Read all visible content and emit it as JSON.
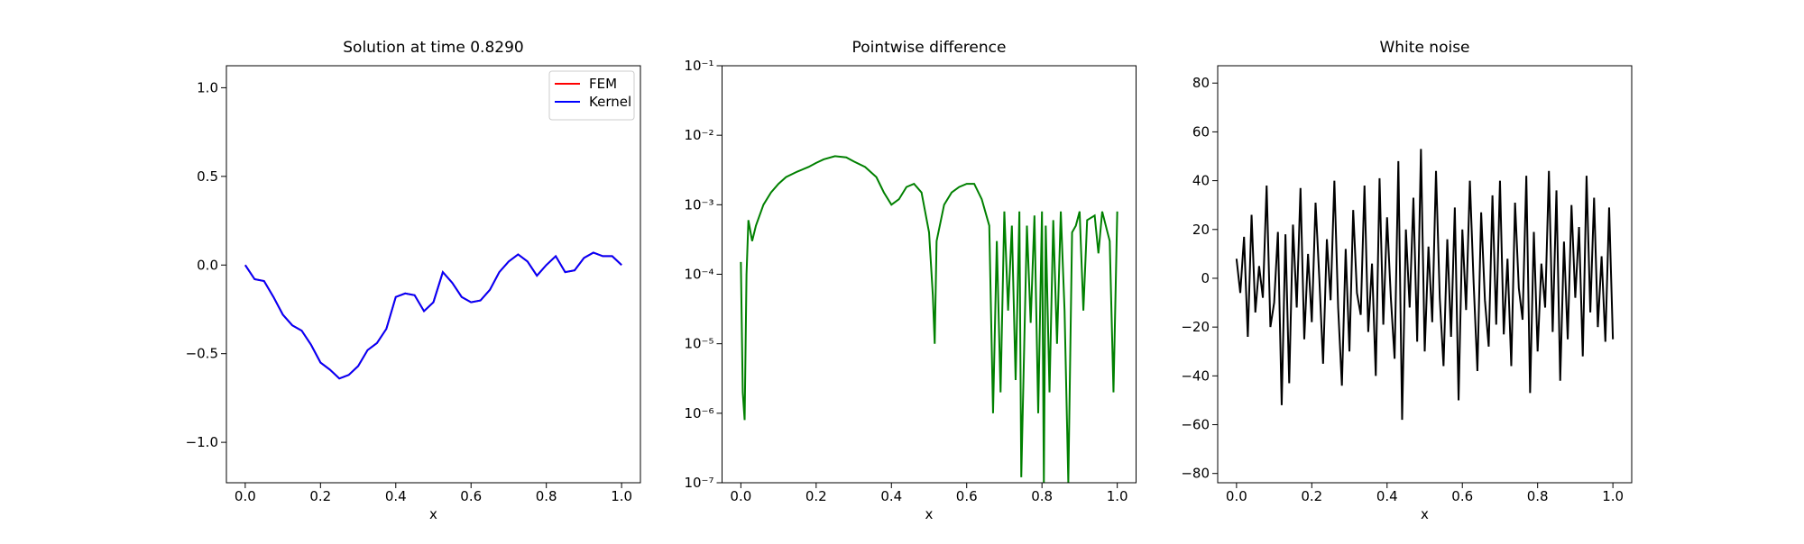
{
  "chart_data": [
    {
      "type": "line",
      "title": "Solution at time 0.8290",
      "x_label": "x",
      "x": [
        0,
        0.025,
        0.05,
        0.075,
        0.1,
        0.125,
        0.15,
        0.175,
        0.2,
        0.225,
        0.25,
        0.275,
        0.3,
        0.325,
        0.35,
        0.375,
        0.4,
        0.425,
        0.45,
        0.475,
        0.5,
        0.525,
        0.55,
        0.575,
        0.6,
        0.625,
        0.65,
        0.675,
        0.7,
        0.725,
        0.75,
        0.775,
        0.8,
        0.825,
        0.85,
        0.875,
        0.9,
        0.925,
        0.95,
        0.975,
        1.0
      ],
      "series": [
        {
          "name": "FEM",
          "color": "#ff0000",
          "values": [
            0.0,
            -0.08,
            -0.09,
            -0.18,
            -0.28,
            -0.34,
            -0.37,
            -0.45,
            -0.55,
            -0.59,
            -0.64,
            -0.62,
            -0.57,
            -0.48,
            -0.44,
            -0.36,
            -0.18,
            -0.16,
            -0.17,
            -0.26,
            -0.21,
            -0.04,
            -0.1,
            -0.18,
            -0.21,
            -0.2,
            -0.14,
            -0.04,
            0.02,
            0.06,
            0.02,
            -0.06,
            0.0,
            0.05,
            -0.04,
            -0.03,
            0.04,
            0.07,
            0.05,
            0.05,
            0.0
          ]
        },
        {
          "name": "Kernel",
          "color": "#0000ff",
          "values": [
            0.0,
            -0.08,
            -0.09,
            -0.18,
            -0.28,
            -0.34,
            -0.37,
            -0.45,
            -0.55,
            -0.59,
            -0.64,
            -0.62,
            -0.57,
            -0.48,
            -0.44,
            -0.36,
            -0.18,
            -0.16,
            -0.17,
            -0.26,
            -0.21,
            -0.04,
            -0.1,
            -0.18,
            -0.21,
            -0.2,
            -0.14,
            -0.04,
            0.02,
            0.06,
            0.02,
            -0.06,
            0.0,
            0.05,
            -0.04,
            -0.03,
            0.04,
            0.07,
            0.05,
            0.05,
            0.0
          ]
        }
      ],
      "xlim": [
        -0.05,
        1.05
      ],
      "xticks": [
        {
          "value": 0,
          "label": "0.0"
        },
        0.2,
        0.4,
        0.6,
        0.8,
        {
          "value": 1,
          "label": "1.0"
        }
      ],
      "ylim": [
        -1.228,
        1.124
      ],
      "yticks": [
        {
          "value": -1,
          "label": "−1.0"
        },
        {
          "value": -0.5,
          "label": "−0.5"
        },
        {
          "value": 0,
          "label": "0.0"
        },
        0.5,
        {
          "value": 1,
          "label": "1.0"
        }
      ],
      "legend": "upper right"
    },
    {
      "type": "line",
      "title": "Pointwise difference",
      "x_label": "x",
      "yscale": "log",
      "x": [
        0,
        0.005,
        0.01,
        0.015,
        0.02,
        0.03,
        0.04,
        0.06,
        0.08,
        0.1,
        0.12,
        0.15,
        0.18,
        0.2,
        0.22,
        0.25,
        0.28,
        0.3,
        0.33,
        0.36,
        0.38,
        0.4,
        0.42,
        0.44,
        0.46,
        0.48,
        0.5,
        0.51,
        0.515,
        0.52,
        0.54,
        0.56,
        0.58,
        0.6,
        0.62,
        0.64,
        0.66,
        0.67,
        0.68,
        0.69,
        0.7,
        0.71,
        0.72,
        0.73,
        0.74,
        0.745,
        0.76,
        0.77,
        0.78,
        0.79,
        0.8,
        0.805,
        0.81,
        0.82,
        0.83,
        0.84,
        0.85,
        0.86,
        0.87,
        0.88,
        0.89,
        0.9,
        0.91,
        0.92,
        0.94,
        0.95,
        0.96,
        0.98,
        0.99,
        1.0
      ],
      "series": [
        {
          "name": "difference",
          "color": "#008000",
          "values": [
            0.00015,
            2e-06,
            8e-07,
            0.0001,
            0.0006,
            0.0003,
            0.0005,
            0.001,
            0.0015,
            0.002,
            0.0025,
            0.003,
            0.0035,
            0.004,
            0.0045,
            0.005,
            0.0048,
            0.0042,
            0.0035,
            0.0025,
            0.0015,
            0.001,
            0.0012,
            0.0018,
            0.002,
            0.0015,
            0.0004,
            5e-05,
            1e-05,
            0.0003,
            0.001,
            0.0015,
            0.0018,
            0.002,
            0.002,
            0.0012,
            0.0005,
            1e-06,
            0.0003,
            2e-06,
            0.0008,
            3e-05,
            0.0005,
            3e-06,
            0.0008,
            1.2e-07,
            0.0005,
            2e-05,
            0.0007,
            1e-06,
            0.0008,
            1e-07,
            0.0005,
            2e-06,
            0.0006,
            1e-05,
            0.0008,
            3e-05,
            1e-07,
            0.0004,
            0.0005,
            0.0008,
            3e-05,
            0.0006,
            0.0007,
            0.0002,
            0.0008,
            0.0003,
            2e-06,
            0.0008
          ]
        }
      ],
      "xlim": [
        -0.05,
        1.05
      ],
      "xticks": [
        {
          "value": 0,
          "label": "0.0"
        },
        0.2,
        0.4,
        0.6,
        0.8,
        {
          "value": 1,
          "label": "1.0"
        }
      ],
      "ylim": [
        1e-07,
        0.1
      ],
      "yticks": [
        {
          "value": 1e-07,
          "label": "10⁻⁷"
        },
        {
          "value": 1e-06,
          "label": "10⁻⁶"
        },
        {
          "value": 1e-05,
          "label": "10⁻⁵"
        },
        {
          "value": 0.0001,
          "label": "10⁻⁴"
        },
        {
          "value": 0.001,
          "label": "10⁻³"
        },
        {
          "value": 0.01,
          "label": "10⁻²"
        },
        {
          "value": 0.1,
          "label": "10⁻¹"
        }
      ]
    },
    {
      "type": "line",
      "title": "White noise",
      "x_label": "x",
      "x": [
        0,
        0.01,
        0.02,
        0.03,
        0.04,
        0.05,
        0.06,
        0.07,
        0.08,
        0.09,
        0.1,
        0.11,
        0.12,
        0.13,
        0.14,
        0.15,
        0.16,
        0.17,
        0.18,
        0.19,
        0.2,
        0.21,
        0.22,
        0.23,
        0.24,
        0.25,
        0.26,
        0.27,
        0.28,
        0.29,
        0.3,
        0.31,
        0.32,
        0.33,
        0.34,
        0.35,
        0.36,
        0.37,
        0.38,
        0.39,
        0.4,
        0.41,
        0.42,
        0.43,
        0.44,
        0.45,
        0.46,
        0.47,
        0.48,
        0.49,
        0.5,
        0.51,
        0.52,
        0.53,
        0.54,
        0.55,
        0.56,
        0.57,
        0.58,
        0.59,
        0.6,
        0.61,
        0.62,
        0.63,
        0.64,
        0.65,
        0.66,
        0.67,
        0.68,
        0.69,
        0.7,
        0.71,
        0.72,
        0.73,
        0.74,
        0.75,
        0.76,
        0.77,
        0.78,
        0.79,
        0.8,
        0.81,
        0.82,
        0.83,
        0.84,
        0.85,
        0.86,
        0.87,
        0.88,
        0.89,
        0.9,
        0.91,
        0.92,
        0.93,
        0.94,
        0.95,
        0.96,
        0.97,
        0.98,
        0.99,
        1.0
      ],
      "series": [
        {
          "name": "noise",
          "color": "#000000",
          "values": [
            8,
            -6,
            17,
            -24,
            26,
            -14,
            5,
            -8,
            38,
            -20,
            -10,
            19,
            -52,
            18,
            -43,
            22,
            -12,
            37,
            -25,
            10,
            -18,
            31,
            0,
            -35,
            16,
            -9,
            40,
            -12,
            -44,
            12,
            -30,
            28,
            -6,
            -15,
            38,
            -22,
            6,
            -40,
            41,
            -19,
            25,
            -8,
            -33,
            48,
            -58,
            20,
            -12,
            33,
            -26,
            53,
            -30,
            13,
            -18,
            44,
            -8,
            -36,
            16,
            -24,
            29,
            -50,
            20,
            -13,
            40,
            -2,
            -38,
            27,
            -9,
            -28,
            34,
            -19,
            40,
            -23,
            8,
            -36,
            31,
            -4,
            -17,
            42,
            -47,
            19,
            -30,
            6,
            -12,
            44,
            -22,
            36,
            -42,
            15,
            -25,
            30,
            -8,
            21,
            -32,
            42,
            -14,
            33,
            -20,
            9,
            -26,
            29,
            -25
          ]
        }
      ],
      "xlim": [
        -0.05,
        1.05
      ],
      "xticks": [
        {
          "value": 0,
          "label": "0.0"
        },
        0.2,
        0.4,
        0.6,
        0.8,
        {
          "value": 1,
          "label": "1.0"
        }
      ],
      "ylim": [
        -83.8,
        87.1
      ],
      "yticks": [
        {
          "value": -80,
          "label": "−80"
        },
        {
          "value": -60,
          "label": "−60"
        },
        {
          "value": -40,
          "label": "−40"
        },
        {
          "value": -20,
          "label": "−20"
        },
        0,
        20,
        40,
        60,
        80
      ]
    }
  ]
}
